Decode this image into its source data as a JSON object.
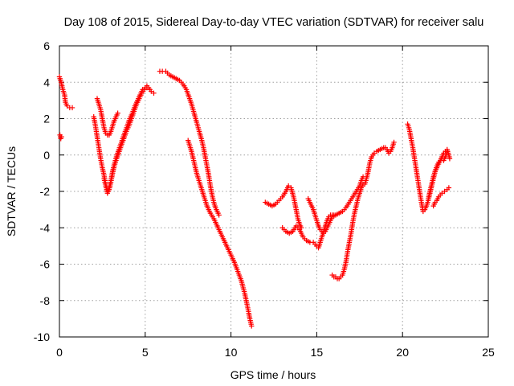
{
  "chart_data": {
    "type": "scatter",
    "title": "Day 108 of 2015, Sidereal Day-to-day VTEC variation (SDTVAR) for receiver salu",
    "xlabel": "GPS time / hours",
    "ylabel": "SDTVAR / TECUs",
    "xlim": [
      0,
      25
    ],
    "ylim": [
      -10,
      6
    ],
    "xticks": [
      "0",
      "5",
      "10",
      "15",
      "20",
      "25"
    ],
    "yticks": [
      "-10",
      "-8",
      "-6",
      "-4",
      "-2",
      "0",
      "2",
      "4",
      "6"
    ],
    "grid": true,
    "marker": "plus",
    "color": "#ff0000",
    "series": [
      {
        "points": [
          [
            0.03,
            1.1
          ],
          [
            0.08,
            0.9
          ],
          [
            0.12,
            1.0
          ]
        ]
      },
      {
        "points": [
          [
            0.0,
            4.3
          ],
          [
            0.1,
            4.0
          ],
          [
            0.2,
            3.6
          ],
          [
            0.3,
            3.3
          ],
          [
            0.35,
            2.9
          ],
          [
            0.45,
            2.7
          ],
          [
            0.6,
            2.6
          ],
          [
            0.75,
            2.6
          ]
        ]
      },
      {
        "points": [
          [
            2.0,
            2.1
          ],
          [
            2.1,
            1.6
          ],
          [
            2.2,
            1.0
          ],
          [
            2.3,
            0.4
          ],
          [
            2.4,
            -0.2
          ],
          [
            2.5,
            -0.7
          ],
          [
            2.6,
            -1.1
          ],
          [
            2.7,
            -1.6
          ],
          [
            2.8,
            -2.0
          ],
          [
            2.9,
            -1.8
          ],
          [
            3.0,
            -1.4
          ],
          [
            3.1,
            -0.9
          ],
          [
            3.2,
            -0.5
          ],
          [
            3.35,
            0.0
          ],
          [
            3.5,
            0.4
          ],
          [
            3.65,
            0.8
          ],
          [
            3.8,
            1.2
          ],
          [
            3.95,
            1.6
          ],
          [
            4.1,
            2.0
          ],
          [
            4.25,
            2.3
          ],
          [
            4.4,
            2.7
          ],
          [
            4.55,
            3.0
          ],
          [
            4.7,
            3.3
          ],
          [
            4.85,
            3.6
          ],
          [
            5.0,
            3.7
          ],
          [
            5.1,
            3.8
          ],
          [
            5.2,
            3.7
          ],
          [
            5.35,
            3.5
          ],
          [
            5.5,
            3.4
          ]
        ]
      },
      {
        "points": [
          [
            2.2,
            3.1
          ],
          [
            2.3,
            2.8
          ],
          [
            2.4,
            2.5
          ],
          [
            2.5,
            2.0
          ],
          [
            2.6,
            1.5
          ],
          [
            2.7,
            1.2
          ],
          [
            2.8,
            1.1
          ],
          [
            2.9,
            1.1
          ],
          [
            3.0,
            1.3
          ],
          [
            3.1,
            1.6
          ],
          [
            3.2,
            1.9
          ],
          [
            3.3,
            2.1
          ],
          [
            3.4,
            2.3
          ]
        ]
      },
      {
        "points": [
          [
            2.6,
            -1.3
          ],
          [
            2.7,
            -1.7
          ],
          [
            2.8,
            -2.1
          ],
          [
            2.9,
            -1.9
          ],
          [
            3.0,
            -1.5
          ],
          [
            3.1,
            -1.0
          ],
          [
            3.2,
            -0.6
          ],
          [
            3.3,
            -0.3
          ],
          [
            3.45,
            0.1
          ],
          [
            3.6,
            0.5
          ],
          [
            3.75,
            0.9
          ],
          [
            3.9,
            1.3
          ],
          [
            4.05,
            1.6
          ],
          [
            4.2,
            2.0
          ],
          [
            4.35,
            2.4
          ],
          [
            4.5,
            2.8
          ],
          [
            4.65,
            3.1
          ],
          [
            4.8,
            3.4
          ],
          [
            4.95,
            3.6
          ],
          [
            5.1,
            3.7
          ]
        ]
      },
      {
        "points": [
          [
            5.85,
            4.6
          ],
          [
            6.0,
            4.6
          ],
          [
            6.2,
            4.6
          ],
          [
            6.4,
            4.4
          ],
          [
            6.6,
            4.3
          ],
          [
            6.8,
            4.2
          ],
          [
            7.0,
            4.1
          ],
          [
            7.2,
            3.9
          ],
          [
            7.4,
            3.6
          ],
          [
            7.55,
            3.2
          ],
          [
            7.7,
            2.8
          ],
          [
            7.85,
            2.3
          ],
          [
            8.0,
            1.8
          ],
          [
            8.15,
            1.3
          ],
          [
            8.3,
            0.8
          ],
          [
            8.4,
            0.4
          ],
          [
            8.5,
            -0.1
          ],
          [
            8.6,
            -0.6
          ],
          [
            8.7,
            -1.1
          ],
          [
            8.8,
            -1.7
          ],
          [
            8.9,
            -2.2
          ],
          [
            9.0,
            -2.6
          ],
          [
            9.1,
            -2.9
          ],
          [
            9.2,
            -3.1
          ],
          [
            9.3,
            -3.3
          ]
        ]
      },
      {
        "points": [
          [
            7.5,
            0.8
          ],
          [
            7.6,
            0.5
          ],
          [
            7.7,
            0.2
          ],
          [
            7.8,
            -0.2
          ],
          [
            7.9,
            -0.6
          ],
          [
            8.0,
            -1.0
          ],
          [
            8.1,
            -1.3
          ],
          [
            8.2,
            -1.6
          ],
          [
            8.3,
            -1.9
          ],
          [
            8.4,
            -2.2
          ],
          [
            8.5,
            -2.5
          ],
          [
            8.6,
            -2.8
          ],
          [
            8.7,
            -3.0
          ],
          [
            8.8,
            -3.2
          ],
          [
            9.0,
            -3.5
          ],
          [
            9.2,
            -3.9
          ],
          [
            9.4,
            -4.3
          ],
          [
            9.6,
            -4.7
          ],
          [
            9.8,
            -5.1
          ],
          [
            10.0,
            -5.5
          ],
          [
            10.2,
            -5.9
          ],
          [
            10.4,
            -6.4
          ],
          [
            10.6,
            -6.9
          ],
          [
            10.8,
            -7.6
          ],
          [
            11.0,
            -8.5
          ],
          [
            11.1,
            -9.0
          ],
          [
            11.2,
            -9.4
          ]
        ]
      },
      {
        "points": [
          [
            12.0,
            -2.6
          ],
          [
            12.2,
            -2.7
          ],
          [
            12.4,
            -2.8
          ],
          [
            12.6,
            -2.7
          ],
          [
            12.8,
            -2.5
          ],
          [
            13.0,
            -2.3
          ],
          [
            13.2,
            -2.0
          ],
          [
            13.35,
            -1.7
          ],
          [
            13.5,
            -1.8
          ],
          [
            13.65,
            -2.3
          ],
          [
            13.8,
            -3.0
          ],
          [
            13.9,
            -3.5
          ],
          [
            14.0,
            -3.8
          ],
          [
            14.1,
            -4.0
          ]
        ]
      },
      {
        "points": [
          [
            13.0,
            -4.0
          ],
          [
            13.2,
            -4.2
          ],
          [
            13.4,
            -4.3
          ],
          [
            13.6,
            -4.2
          ],
          [
            13.8,
            -3.9
          ],
          [
            14.0,
            -4.1
          ],
          [
            14.2,
            -4.5
          ],
          [
            14.4,
            -4.7
          ],
          [
            14.6,
            -4.8
          ],
          [
            14.8,
            -4.8
          ],
          [
            15.0,
            -5.0
          ],
          [
            15.1,
            -5.1
          ],
          [
            15.2,
            -4.8
          ],
          [
            15.3,
            -4.5
          ],
          [
            15.4,
            -4.2
          ],
          [
            15.5,
            -3.9
          ],
          [
            15.6,
            -3.6
          ],
          [
            15.7,
            -3.4
          ],
          [
            15.8,
            -3.3
          ],
          [
            15.9,
            -3.3
          ],
          [
            16.0,
            -3.3
          ]
        ]
      },
      {
        "points": [
          [
            14.5,
            -2.4
          ],
          [
            14.6,
            -2.6
          ],
          [
            14.7,
            -2.8
          ],
          [
            14.8,
            -3.0
          ],
          [
            14.9,
            -3.3
          ],
          [
            15.0,
            -3.6
          ],
          [
            15.1,
            -3.9
          ],
          [
            15.2,
            -4.1
          ],
          [
            15.3,
            -4.2
          ],
          [
            15.4,
            -4.3
          ],
          [
            15.5,
            -4.2
          ],
          [
            15.6,
            -4.0
          ],
          [
            15.7,
            -3.8
          ],
          [
            15.8,
            -3.6
          ],
          [
            15.9,
            -3.4
          ],
          [
            16.1,
            -3.3
          ],
          [
            16.3,
            -3.2
          ],
          [
            16.5,
            -3.1
          ],
          [
            16.7,
            -2.9
          ],
          [
            16.9,
            -2.6
          ],
          [
            17.1,
            -2.3
          ],
          [
            17.3,
            -2.0
          ],
          [
            17.5,
            -1.7
          ],
          [
            17.6,
            -1.4
          ],
          [
            17.7,
            -1.2
          ]
        ]
      },
      {
        "points": [
          [
            15.9,
            -6.6
          ],
          [
            16.0,
            -6.7
          ],
          [
            16.1,
            -6.7
          ],
          [
            16.2,
            -6.8
          ],
          [
            16.3,
            -6.8
          ],
          [
            16.4,
            -6.7
          ],
          [
            16.5,
            -6.6
          ],
          [
            16.6,
            -6.3
          ],
          [
            16.7,
            -5.9
          ],
          [
            16.8,
            -5.3
          ],
          [
            16.9,
            -4.8
          ],
          [
            17.0,
            -4.3
          ],
          [
            17.1,
            -3.7
          ],
          [
            17.2,
            -3.2
          ],
          [
            17.3,
            -2.8
          ],
          [
            17.4,
            -2.4
          ],
          [
            17.5,
            -2.1
          ],
          [
            17.6,
            -1.8
          ],
          [
            17.7,
            -1.6
          ],
          [
            17.8,
            -1.6
          ],
          [
            17.9,
            -1.3
          ],
          [
            18.0,
            -0.9
          ],
          [
            18.1,
            -0.4
          ],
          [
            18.2,
            -0.1
          ],
          [
            18.35,
            0.1
          ],
          [
            18.5,
            0.2
          ],
          [
            18.7,
            0.3
          ],
          [
            18.9,
            0.4
          ],
          [
            19.0,
            0.4
          ],
          [
            19.1,
            0.3
          ],
          [
            19.2,
            0.1
          ],
          [
            19.3,
            0.2
          ],
          [
            19.4,
            0.4
          ],
          [
            19.5,
            0.7
          ]
        ]
      },
      {
        "points": [
          [
            20.3,
            1.7
          ],
          [
            20.4,
            1.4
          ],
          [
            20.5,
            0.9
          ],
          [
            20.6,
            0.4
          ],
          [
            20.7,
            -0.2
          ],
          [
            20.8,
            -0.8
          ],
          [
            20.9,
            -1.4
          ],
          [
            21.0,
            -2.0
          ],
          [
            21.1,
            -2.6
          ],
          [
            21.2,
            -3.1
          ],
          [
            21.3,
            -3.0
          ],
          [
            21.4,
            -2.8
          ],
          [
            21.5,
            -2.5
          ],
          [
            21.6,
            -2.1
          ],
          [
            21.7,
            -1.7
          ],
          [
            21.8,
            -1.3
          ],
          [
            21.9,
            -0.9
          ],
          [
            22.0,
            -0.6
          ],
          [
            22.1,
            -0.4
          ],
          [
            22.2,
            -0.3
          ],
          [
            22.3,
            -0.2
          ],
          [
            22.4,
            -0.3
          ],
          [
            22.5,
            -0.1
          ],
          [
            22.6,
            0.2
          ]
        ]
      },
      {
        "points": [
          [
            21.8,
            -2.8
          ],
          [
            21.9,
            -2.6
          ],
          [
            22.0,
            -2.5
          ],
          [
            22.1,
            -2.3
          ],
          [
            22.2,
            -2.2
          ],
          [
            22.3,
            -2.1
          ],
          [
            22.45,
            -2.0
          ],
          [
            22.6,
            -1.9
          ],
          [
            22.7,
            -1.8
          ]
        ]
      },
      {
        "points": [
          [
            21.5,
            -2.4
          ],
          [
            21.6,
            -2.0
          ],
          [
            21.7,
            -1.6
          ],
          [
            21.8,
            -1.2
          ],
          [
            21.9,
            -0.9
          ],
          [
            22.0,
            -0.7
          ],
          [
            22.1,
            -0.5
          ],
          [
            22.2,
            -0.3
          ],
          [
            22.3,
            -0.1
          ],
          [
            22.4,
            0.1
          ],
          [
            22.5,
            0.2
          ],
          [
            22.6,
            0.3
          ],
          [
            22.7,
            0.0
          ],
          [
            22.75,
            -0.2
          ]
        ]
      }
    ]
  }
}
